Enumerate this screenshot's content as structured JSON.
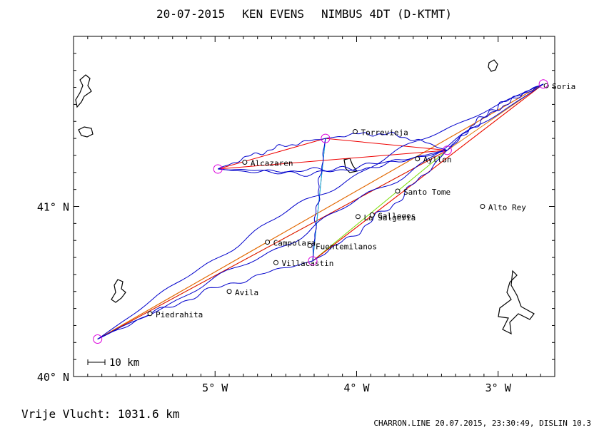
{
  "header": {
    "date": "20-07-2015",
    "pilot": "KEN EVENS",
    "glider": "NIMBUS 4DT (D-KTMT)"
  },
  "footer": {
    "distance_label": "Vrije Vlucht: 1031.6 km",
    "credits": "CHARRON.LINE 20.07.2015, 23:30:49, DISLIN 10.3"
  },
  "axes": {
    "lon_range": [
      -6.0,
      -2.6
    ],
    "lat_range": [
      40.0,
      42.0
    ],
    "x_ticks": [
      {
        "lon": -5,
        "label": "5° W"
      },
      {
        "lon": -4,
        "label": "4° W"
      },
      {
        "lon": -3,
        "label": "3° W"
      }
    ],
    "y_ticks": [
      {
        "lat": 41,
        "label": "41° N"
      },
      {
        "lat": 40,
        "label": "40° N"
      }
    ]
  },
  "scale_bar": {
    "label": "10 km"
  },
  "places": [
    {
      "name": "Soria",
      "lon": -2.66,
      "lat": 41.71
    },
    {
      "name": "Torrevieja",
      "lon": -4.01,
      "lat": 41.44
    },
    {
      "name": "Ayllon",
      "lon": -3.57,
      "lat": 41.28
    },
    {
      "name": "Alcazaren",
      "lon": -4.79,
      "lat": 41.26
    },
    {
      "name": "Santo Tome",
      "lon": -3.71,
      "lat": 41.09
    },
    {
      "name": "Alto Rey",
      "lon": -3.11,
      "lat": 41.0
    },
    {
      "name": "La Salgeria",
      "lon": -3.99,
      "lat": 40.94
    },
    {
      "name": "Gallegos",
      "lon": -3.89,
      "lat": 40.95
    },
    {
      "name": "Campolara",
      "lon": -4.63,
      "lat": 40.79
    },
    {
      "name": "Fuentemilanos",
      "lon": -4.33,
      "lat": 40.77
    },
    {
      "name": "Villacastin",
      "lon": -4.57,
      "lat": 40.67
    },
    {
      "name": "Avila",
      "lon": -4.9,
      "lat": 40.5
    },
    {
      "name": "Piedrahita",
      "lon": -5.46,
      "lat": 40.37
    }
  ],
  "turnpoints": [
    {
      "lon": -5.83,
      "lat": 40.22
    },
    {
      "lon": -2.68,
      "lat": 41.72
    },
    {
      "lon": -3.36,
      "lat": 41.33
    },
    {
      "lon": -4.98,
      "lat": 41.22
    },
    {
      "lon": -4.22,
      "lat": 41.4
    },
    {
      "lon": -4.31,
      "lat": 40.68
    }
  ],
  "colors": {
    "track": "#0000cc",
    "task_red": "#ee0000",
    "task_orange": "#e07800",
    "task_green": "#77dd00",
    "task_cyan": "#00bbee",
    "turnpoint": "#dd00dd",
    "coast": "#000000"
  }
}
